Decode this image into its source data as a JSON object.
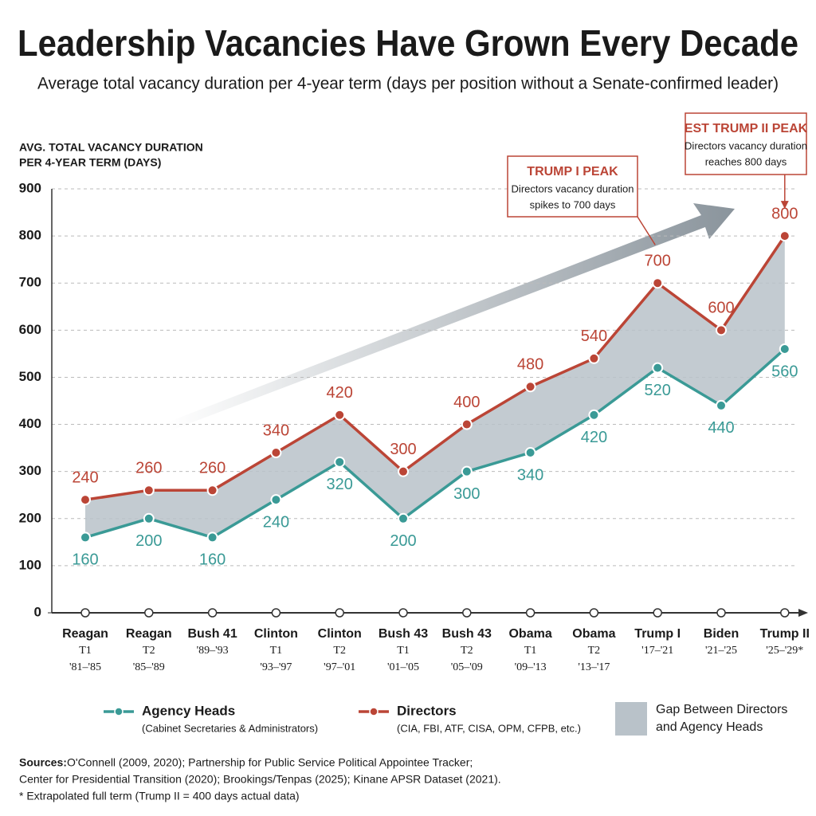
{
  "chart_data": {
    "type": "line",
    "title": "Leadership Vacancies Have Grown Every Decade",
    "subtitle": "Average total vacancy duration per 4-year term (days per position without a Senate-confirmed leader)",
    "y_axis_label": [
      "AVG. TOTAL VACANCY DURATION",
      "PER 4-YEAR TERM (DAYS)"
    ],
    "categories": [
      [
        "Reagan",
        "T1",
        "'81–'85"
      ],
      [
        "Reagan",
        "T2",
        "'85–'89"
      ],
      [
        "Bush 41",
        "'89–'93"
      ],
      [
        "Clinton",
        "T1",
        "'93–'97"
      ],
      [
        "Clinton",
        "T2",
        "'97–'01"
      ],
      [
        "Bush 43",
        "T1",
        "'01–'05"
      ],
      [
        "Bush 43",
        "T2",
        "'05–'09"
      ],
      [
        "Obama",
        "T1",
        "'09–'13"
      ],
      [
        "Obama",
        "T2",
        "'13–'17"
      ],
      [
        "Trump I",
        "'17–'21"
      ],
      [
        "Biden",
        "'21–'25"
      ],
      [
        "Trump II",
        "'25–'29*"
      ]
    ],
    "series": [
      {
        "name": "Agency Heads",
        "description": "(Cabinet Secretaries & Administrators)",
        "color": "#3a9a96",
        "values": [
          160,
          200,
          160,
          240,
          320,
          200,
          300,
          340,
          420,
          520,
          440,
          560
        ]
      },
      {
        "name": "Directors",
        "description": "(CIA, FBI, ATF, CISA, OPM, CFPB, etc.)",
        "color": "#bb4536",
        "values": [
          240,
          260,
          260,
          340,
          420,
          300,
          400,
          480,
          540,
          700,
          600,
          800
        ]
      }
    ],
    "gap_label": [
      "Gap Between Directors",
      "and Agency Heads"
    ],
    "gap_color": "#b9c2c9",
    "ylim": [
      0,
      900
    ],
    "yticks": [
      0,
      100,
      200,
      300,
      400,
      500,
      600,
      700,
      800,
      900
    ],
    "grid": true,
    "annotations": [
      {
        "title": "TRUMP I PEAK",
        "lines": [
          "Directors vacancy duration",
          "spikes to 700 days"
        ]
      },
      {
        "title": "EST TRUMP II PEAK",
        "lines": [
          "Directors vacancy duration",
          "reaches 800 days"
        ]
      }
    ],
    "sources_label": "Sources:",
    "sources": [
      "O'Connell (2009, 2020); Partnership for Public Service Political Appointee Tracker;",
      "Center for Presidential Transition (2020); Brookings/Tenpas (2025); Kinane APSR Dataset (2021)."
    ],
    "footnote": "* Extrapolated full term (Trump II = 400 days actual data)"
  }
}
